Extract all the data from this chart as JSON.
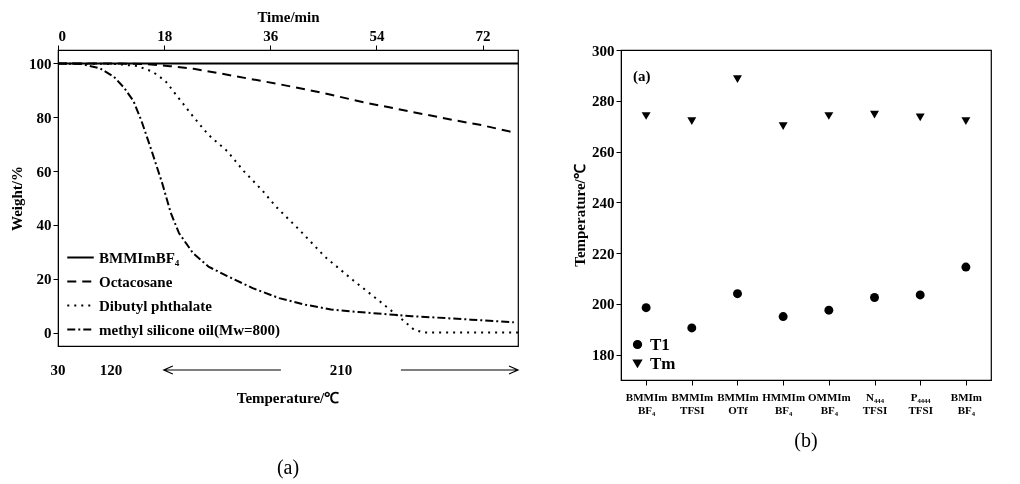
{
  "chart_data": [
    {
      "type": "line",
      "title": "(a)",
      "xlabel": "Time/min",
      "ylabel": "Weight/%",
      "xlim": [
        0,
        78
      ],
      "xticks": [
        0,
        18,
        36,
        54,
        72
      ],
      "ylim": [
        -5,
        105
      ],
      "yticks": [
        0,
        20,
        40,
        60,
        80,
        100
      ],
      "annotations": [
        "30",
        "120",
        "210",
        "Temperature/℃"
      ],
      "legend": "bottom left",
      "series": [
        {
          "name": "BMMImBF₄",
          "color": "#000000",
          "line_style": "solid",
          "x": [
            0,
            78
          ],
          "values": [
            100,
            100
          ]
        },
        {
          "name": "Octacosane",
          "color": "#000000",
          "line_style": "dashed",
          "x": [
            0,
            10,
            15,
            19,
            23,
            27,
            32,
            37.5,
            45,
            52,
            60,
            67,
            72,
            77
          ],
          "values": [
            100,
            100,
            99.8,
            99,
            98,
            96.5,
            94.5,
            92.3,
            89,
            85.5,
            82,
            79,
            77,
            74.5
          ]
        },
        {
          "name": "Dibutyl phthalate",
          "color": "#000000",
          "line_style": "dotted",
          "x": [
            0,
            10,
            13.5,
            16,
            18.2,
            20.5,
            22.9,
            25.5,
            28.7,
            31.5,
            34.6,
            37,
            41,
            45.2,
            50,
            54.5,
            58,
            60.4,
            62,
            66,
            72,
            78
          ],
          "values": [
            100,
            99.8,
            99,
            97,
            93.5,
            87,
            80.3,
            73.5,
            67.4,
            60,
            52.9,
            46.7,
            38,
            28.3,
            19.5,
            11.7,
            5.5,
            1,
            0,
            0,
            0,
            0
          ]
        },
        {
          "name": "methyl silicone oil(Mw=800)",
          "color": "#000000",
          "line_style": "dashdot",
          "x": [
            0,
            4,
            7.1,
            9.5,
            11.2,
            12.8,
            14.1,
            15.9,
            17.7,
            19.1,
            20.5,
            22.9,
            25.5,
            28.7,
            33,
            37.5,
            42,
            46.3,
            51,
            55.1,
            60,
            63.9,
            70,
            77.3
          ],
          "values": [
            100,
            99.8,
            98.2,
            95,
            91,
            86,
            79,
            67.4,
            55.3,
            44.6,
            37,
            29.5,
            24.5,
            21,
            16.5,
            12.8,
            10.3,
            8.6,
            7.6,
            6.9,
            6.1,
            5.6,
            4.8,
            3.8
          ]
        }
      ]
    },
    {
      "type": "scatter",
      "title": "(b)",
      "ylabel": "Temperature/℃",
      "categories": [
        "BMMIm BF₄",
        "BMMIm TFSI",
        "BMMIm OTf",
        "HMMIm BF₄",
        "OMMIm BF₄",
        "N₄₄₄ TFSI",
        "P₄₄₄₄ TFSI",
        "BMIm BF₄"
      ],
      "ylim": [
        170,
        300
      ],
      "yticks": [
        180,
        200,
        220,
        240,
        260,
        280,
        300
      ],
      "annotations": [
        "(a)"
      ],
      "legend": "bottom left",
      "series": [
        {
          "name": "T1",
          "color": "#000000",
          "marker": "circle",
          "values": [
            198.5,
            190.5,
            204,
            195,
            197.5,
            202.5,
            203.5,
            214.5
          ]
        },
        {
          "name": "Tm",
          "color": "#000000",
          "marker": "triangle",
          "values": [
            274,
            272,
            288.5,
            270,
            274,
            274.5,
            273.5,
            272
          ]
        }
      ]
    }
  ]
}
